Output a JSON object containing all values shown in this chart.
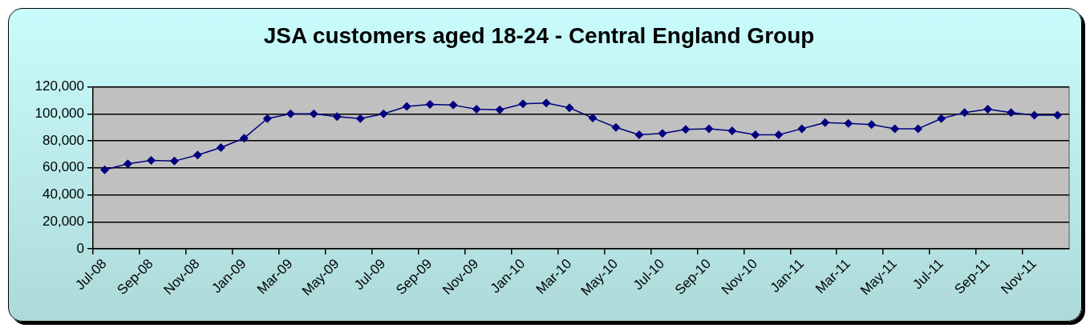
{
  "chart_data": {
    "type": "line",
    "title": "JSA customers aged 18-24 - Central England Group",
    "categories": [
      "Jul-08",
      null,
      "Sep-08",
      null,
      "Nov-08",
      null,
      "Jan-09",
      null,
      "Mar-09",
      null,
      "May-09",
      null,
      "Jul-09",
      null,
      "Sep-09",
      null,
      "Nov-09",
      null,
      "Jan-10",
      null,
      "Mar-10",
      null,
      "May-10",
      null,
      "Jul-10",
      null,
      "Sep-10",
      null,
      "Nov-10",
      null,
      "Jan-11",
      null,
      "Mar-11",
      null,
      "May-11",
      null,
      "Jul-11",
      null,
      "Sep-11",
      null,
      "Nov-11",
      null
    ],
    "series": [
      {
        "color": "#000080",
        "values": [
          58500,
          63000,
          65500,
          65000,
          69500,
          75000,
          82000,
          96500,
          100000,
          100000,
          98000,
          96500,
          100000,
          105500,
          107000,
          106500,
          103500,
          103000,
          107500,
          108000,
          104500,
          97000,
          90000,
          84500,
          85500,
          88500,
          89000,
          87500,
          84500,
          84500,
          89000,
          93500,
          93000,
          92000,
          89000,
          89000,
          96500,
          101000,
          103500,
          101000,
          99000,
          99000
        ]
      }
    ],
    "ylim": [
      0,
      120000
    ],
    "yticks": [
      0,
      {
        "value": 20000,
        "label": "20,000"
      },
      {
        "value": 40000,
        "label": "40,000"
      },
      {
        "value": 60000,
        "label": "60,000"
      },
      {
        "value": 80000,
        "label": "80,000"
      },
      {
        "value": 100000,
        "label": "100,000"
      },
      {
        "value": 120000,
        "label": "120,000"
      }
    ],
    "grid": "y",
    "legend": false,
    "marker": "diamond",
    "line_style": "solid"
  }
}
